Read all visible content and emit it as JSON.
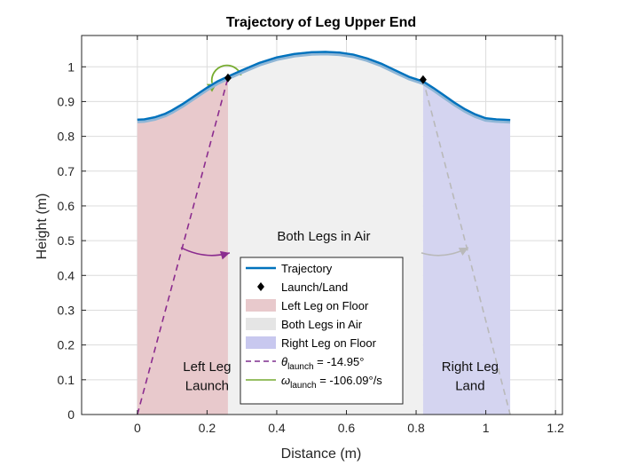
{
  "chart_data": {
    "type": "area",
    "title": "Trajectory of Leg Upper End",
    "xlabel": "Distance (m)",
    "ylabel": "Height (m)",
    "xlim": [
      -0.16,
      1.22
    ],
    "ylim": [
      0,
      1.09
    ],
    "xticks": [
      0,
      0.2,
      0.4,
      0.6,
      0.8,
      1,
      1.2
    ],
    "xtick_labels": [
      "0",
      "0.2",
      "0.4",
      "0.6",
      "0.8",
      "1",
      "1.2"
    ],
    "yticks": [
      0,
      0.1,
      0.2,
      0.3,
      0.4,
      0.5,
      0.6,
      0.7,
      0.8,
      0.9,
      1
    ],
    "ytick_labels": [
      "0",
      "0.1",
      "0.2",
      "0.3",
      "0.4",
      "0.5",
      "0.6",
      "0.7",
      "0.8",
      "0.9",
      "1"
    ],
    "grid": true,
    "trajectory": {
      "x": [
        0,
        0.02,
        0.05,
        0.08,
        0.1,
        0.13,
        0.16,
        0.2,
        0.23,
        0.26,
        0.3,
        0.35,
        0.4,
        0.45,
        0.5,
        0.54,
        0.58,
        0.62,
        0.66,
        0.7,
        0.74,
        0.78,
        0.82,
        0.85,
        0.88,
        0.91,
        0.94,
        0.97,
        1.0,
        1.03,
        1.05,
        1.07
      ],
      "y": [
        0.848,
        0.849,
        0.855,
        0.865,
        0.875,
        0.893,
        0.913,
        0.94,
        0.958,
        0.972,
        0.99,
        1.011,
        1.027,
        1.037,
        1.042,
        1.043,
        1.041,
        1.035,
        1.024,
        1.009,
        0.99,
        0.971,
        0.958,
        0.939,
        0.918,
        0.897,
        0.878,
        0.863,
        0.852,
        0.849,
        0.848,
        0.847
      ]
    },
    "launch_land_points": [
      {
        "x": 0.26,
        "y": 0.968
      },
      {
        "x": 0.82,
        "y": 0.963
      }
    ],
    "regions": [
      {
        "name": "Left Leg on Floor",
        "x": [
          0,
          0.26
        ],
        "color": "#e8c9cc"
      },
      {
        "name": "Both Legs in Air",
        "x": [
          0.26,
          0.82
        ],
        "color": "#f0f0f0"
      },
      {
        "name": "Right Leg on Floor",
        "x": [
          0.82,
          1.07
        ],
        "color": "#d4d4f0"
      }
    ],
    "left_leg_line": {
      "from": [
        0,
        0
      ],
      "to": [
        0.26,
        0.968
      ],
      "color": "#8b2c8f"
    },
    "right_leg_line": {
      "from": [
        0.82,
        0.963
      ],
      "to": [
        1.07,
        0
      ],
      "color": "#b9b9b9"
    },
    "theta_arrow": {
      "from": [
        0.125,
        0.48
      ],
      "to": [
        0.265,
        0.465
      ]
    },
    "right_arrow": {
      "from": [
        0.815,
        0.465
      ],
      "to": [
        0.95,
        0.48
      ]
    },
    "omega_arc": {
      "center": [
        0.255,
        0.968
      ],
      "color": "#77ac30"
    },
    "annotations": [
      {
        "text": "Both Legs in Air",
        "x": 0.535,
        "y": 0.5
      },
      {
        "text": "Left Leg",
        "x": 0.2,
        "y": 0.125
      },
      {
        "text": "Launch",
        "x": 0.2,
        "y": 0.07
      },
      {
        "text": "Right Leg",
        "x": 0.955,
        "y": 0.125
      },
      {
        "text": "Land",
        "x": 0.955,
        "y": 0.07
      }
    ],
    "legend": {
      "placement": "center-bottom",
      "entries": [
        {
          "label": "Trajectory",
          "kind": "line",
          "color": "#0072bd"
        },
        {
          "label": "Launch/Land",
          "kind": "diamond",
          "color": "#000000"
        },
        {
          "label": "Left Leg on Floor",
          "kind": "patch",
          "color": "#e8c9cc"
        },
        {
          "label": "Both Legs in Air",
          "kind": "patch",
          "color": "#e5e5e5"
        },
        {
          "label": "Right Leg on Floor",
          "kind": "patch",
          "color": "#c8c8ef"
        },
        {
          "label": "θlaunch = -14.95°",
          "symbol": "θ",
          "sub": "launch",
          "value": " = -14.95°",
          "kind": "dashed",
          "color": "#7e2f8e"
        },
        {
          "label": "ωlaunch = -106.09°/s",
          "symbol": "ω",
          "sub": "launch",
          "value": " = -106.09°/s",
          "kind": "line",
          "color": "#77ac30"
        }
      ]
    },
    "colors": {
      "trajectory": "#0072bd",
      "trajectory_shadow": "#8fb6d6"
    }
  }
}
